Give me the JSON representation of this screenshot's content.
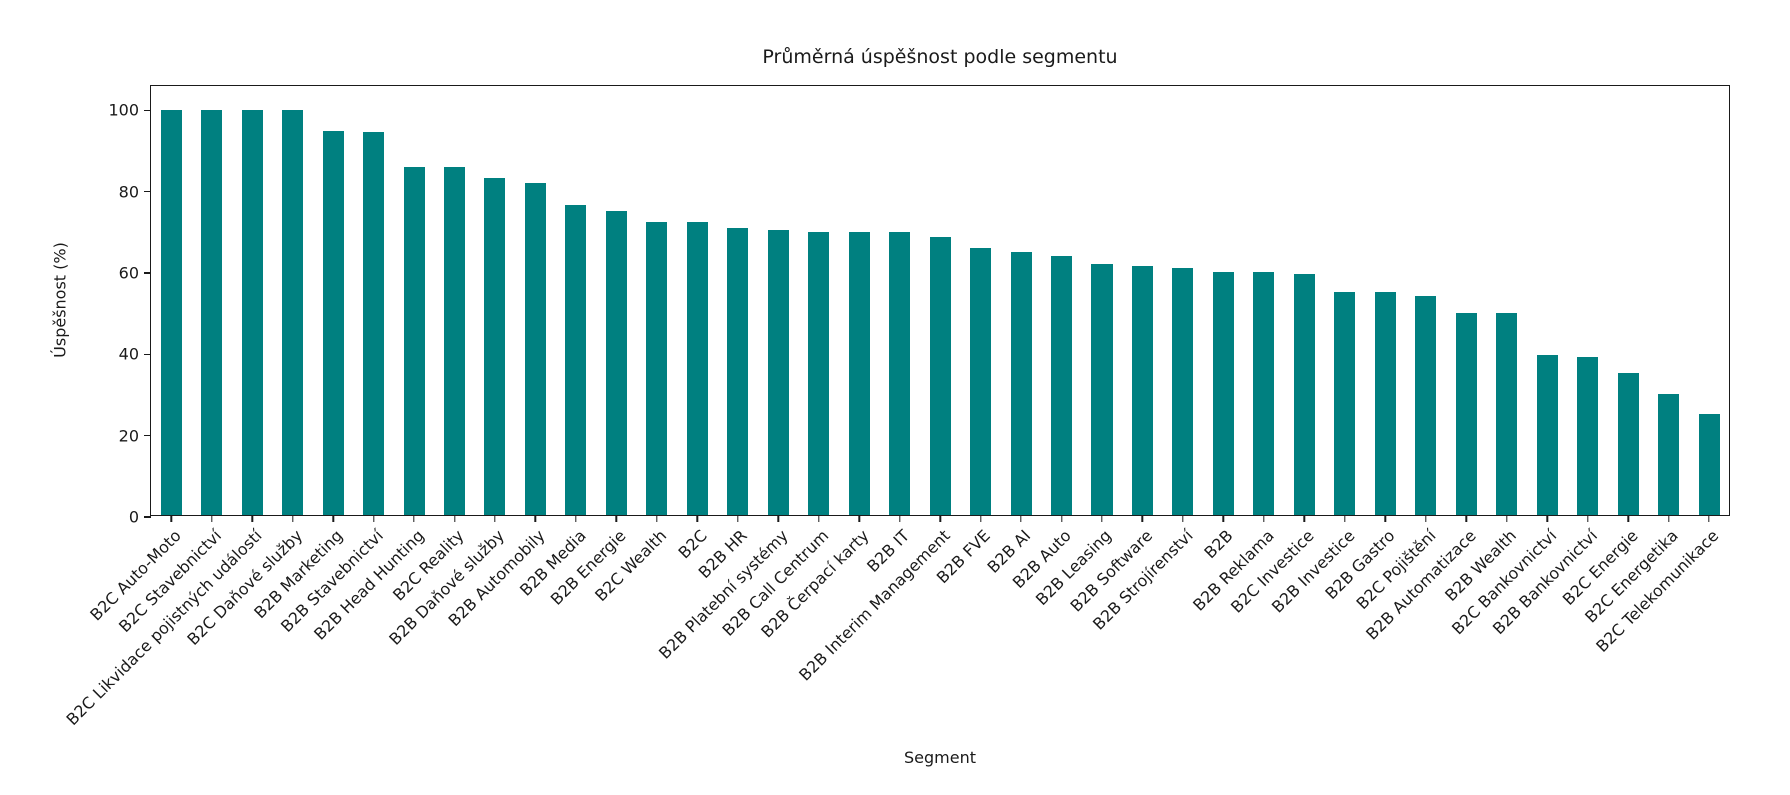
{
  "chart_data": {
    "type": "bar",
    "title": "Průměrná úspěšnost podle segmentu",
    "xlabel": "Segment",
    "ylabel": "Úspěšnost (%)",
    "bar_color": "#008080",
    "axis_color": "#1a1a1a",
    "ylim": [
      0,
      106
    ],
    "yticks": [
      0,
      20,
      40,
      60,
      80,
      100
    ],
    "grid": false,
    "categories": [
      "B2C Auto-Moto",
      "B2C Stavebnictví",
      "B2C Likvidace pojistných událostí",
      "B2C Daňové služby",
      "B2B Marketing",
      "B2B Stavebnictví",
      "B2B Head Hunting",
      "B2C Reality",
      "B2B Daňové služby",
      "B2B Automobily",
      "B2B Media",
      "B2B Energie",
      "B2C Wealth",
      "B2C",
      "B2B HR",
      "B2B Platební systémy",
      "B2B Call Centrum",
      "B2B Čerpací karty",
      "B2B IT",
      "B2B Interim Management",
      "B2B FVE",
      "B2B AI",
      "B2B Auto",
      "B2B Leasing",
      "B2B Software",
      "B2B Strojírenství",
      "B2B",
      "B2B Reklama",
      "B2C Investice",
      "B2B Investice",
      "B2B Gastro",
      "B2C Pojištění",
      "B2B Automatizace",
      "B2B Wealth",
      "B2C Bankovnictví",
      "B2B Bankovnictví",
      "B2C Energie",
      "B2C Energetika",
      "B2C Telekomunikace"
    ],
    "values": [
      100,
      100,
      100,
      100,
      95,
      94.7,
      86,
      86,
      83.3,
      82,
      76.5,
      75,
      72.5,
      72.5,
      71,
      70.5,
      70,
      70,
      70,
      68.6,
      66,
      65,
      64,
      62,
      61.5,
      61,
      60,
      60,
      59.5,
      55,
      55,
      54,
      50,
      50,
      39.5,
      39,
      35,
      30,
      25
    ]
  }
}
